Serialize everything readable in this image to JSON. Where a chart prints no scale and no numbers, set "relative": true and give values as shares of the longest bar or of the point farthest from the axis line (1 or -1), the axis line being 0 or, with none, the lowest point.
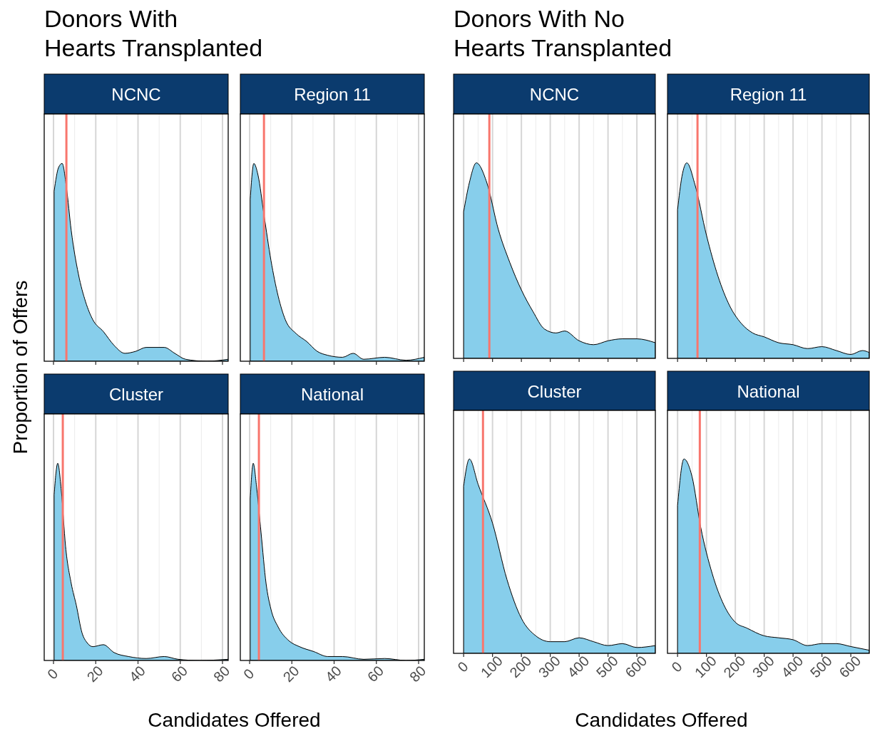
{
  "chart_data": [
    {
      "type": "other",
      "title": "Donors With\nHearts Transplanted"
    },
    {
      "type": "area",
      "title": "NCNC",
      "ylabel": "Proportion of Offers",
      "relative": true,
      "color": "#87ceeb",
      "grid": "x",
      "tick_labels": false,
      "xlim": [
        -4.4,
        82.7
      ],
      "xticks": [
        0,
        20,
        40,
        60,
        80
      ],
      "x": [
        0.3,
        2.4,
        4.1,
        6.1,
        8.4,
        11.8,
        15.2,
        18.6,
        23.6,
        28.7,
        33.8,
        38.9,
        43.9,
        52.4,
        57.4,
        62.5,
        72.6,
        82.7
      ],
      "values": [
        0.86,
        0.98,
        1,
        0.88,
        0.66,
        0.44,
        0.3,
        0.21,
        0.15,
        0.08,
        0.04,
        0.05,
        0.07,
        0.07,
        0.04,
        0.01,
        0,
        0.01
      ],
      "ref_lines": [
        {
          "axis": "x",
          "value": 6.1,
          "color": "#f8766d"
        }
      ]
    },
    {
      "type": "area",
      "title": "Region 11",
      "relative": true,
      "color": "#87ceeb",
      "grid": "x",
      "tick_labels": false,
      "xlim": [
        -4.4,
        82.7
      ],
      "xticks": [
        0,
        20,
        40,
        60,
        80
      ],
      "x": [
        0.3,
        2,
        4,
        6.8,
        10.1,
        13.5,
        16.9,
        22,
        27,
        32,
        37,
        44,
        49,
        54,
        64,
        74,
        82.7
      ],
      "values": [
        0.82,
        1,
        0.94,
        0.74,
        0.51,
        0.33,
        0.21,
        0.14,
        0.1,
        0.05,
        0.03,
        0.02,
        0.04,
        0.01,
        0.02,
        0.005,
        0.02
      ],
      "ref_lines": [
        {
          "axis": "x",
          "value": 6.8,
          "color": "#f8766d"
        }
      ]
    },
    {
      "type": "area",
      "title": "Cluster",
      "xlabel": "Candidates Offered",
      "relative": true,
      "color": "#87ceeb",
      "grid": "x",
      "tick_labels": "x",
      "xlim": [
        -4.4,
        82.7
      ],
      "xticks": [
        0,
        20,
        40,
        60,
        80
      ],
      "x": [
        0.3,
        2,
        3.7,
        5.7,
        8.4,
        10.8,
        13.5,
        15.9,
        18.6,
        23.6,
        28.7,
        35.5,
        43.9,
        52.4,
        59,
        69,
        82.7
      ],
      "values": [
        0.84,
        1,
        0.86,
        0.58,
        0.39,
        0.28,
        0.14,
        0.09,
        0.07,
        0.08,
        0.04,
        0.02,
        0.01,
        0.02,
        0.006,
        0,
        0.006
      ],
      "ref_lines": [
        {
          "axis": "x",
          "value": 4.4,
          "color": "#f8766d"
        }
      ]
    },
    {
      "type": "area",
      "title": "National",
      "relative": true,
      "color": "#87ceeb",
      "grid": "x",
      "tick_labels": "x",
      "xlim": [
        -4.4,
        82.7
      ],
      "xticks": [
        0,
        20,
        40,
        60,
        80
      ],
      "x": [
        0.3,
        1.7,
        3.4,
        5.4,
        7.8,
        10.1,
        13.5,
        18.6,
        23.6,
        30.4,
        37,
        44,
        54,
        64,
        74,
        82.7
      ],
      "values": [
        0.82,
        1,
        0.87,
        0.65,
        0.39,
        0.26,
        0.17,
        0.1,
        0.07,
        0.045,
        0.02,
        0.02,
        0.006,
        0.01,
        0,
        0.006
      ],
      "ref_lines": [
        {
          "axis": "x",
          "value": 4.4,
          "color": "#f8766d"
        }
      ]
    },
    {
      "type": "other",
      "title": "Donors With No\nHearts Transplanted"
    },
    {
      "type": "area",
      "title": "NCNC",
      "relative": true,
      "color": "#87ceeb",
      "grid": "x",
      "tick_labels": false,
      "xlim": [
        -35,
        664
      ],
      "xticks": [
        0,
        100,
        200,
        300,
        400,
        500,
        600
      ],
      "x": [
        0,
        20,
        44,
        80,
        120,
        160,
        200,
        240,
        280,
        320,
        350,
        400,
        450,
        500,
        550,
        600,
        664
      ],
      "values": [
        0.75,
        0.9,
        1,
        0.9,
        0.66,
        0.49,
        0.35,
        0.24,
        0.15,
        0.13,
        0.14,
        0.09,
        0.07,
        0.09,
        0.1,
        0.1,
        0.08
      ],
      "ref_lines": [
        {
          "axis": "x",
          "value": 89,
          "color": "#f8766d"
        }
      ]
    },
    {
      "type": "area",
      "title": "Region 11",
      "relative": true,
      "color": "#87ceeb",
      "grid": "x",
      "tick_labels": false,
      "xlim": [
        -35,
        664
      ],
      "xticks": [
        0,
        100,
        200,
        300,
        400,
        500,
        600
      ],
      "x": [
        0,
        15,
        32,
        60,
        100,
        140,
        180,
        220,
        260,
        300,
        350,
        400,
        450,
        500,
        550,
        600,
        640,
        664
      ],
      "values": [
        0.76,
        0.93,
        1,
        0.89,
        0.63,
        0.42,
        0.27,
        0.18,
        0.13,
        0.11,
        0.08,
        0.07,
        0.05,
        0.06,
        0.04,
        0.02,
        0.04,
        0.03
      ],
      "ref_lines": [
        {
          "axis": "x",
          "value": 69,
          "color": "#f8766d"
        }
      ]
    },
    {
      "type": "area",
      "title": "Cluster",
      "xlabel": "Candidates Offered",
      "relative": true,
      "color": "#87ceeb",
      "grid": "x",
      "tick_labels": "x",
      "xlim": [
        -35,
        664
      ],
      "xticks": [
        0,
        100,
        200,
        300,
        400,
        500,
        600
      ],
      "x": [
        0,
        20,
        50,
        100,
        150,
        200,
        250,
        300,
        350,
        400,
        450,
        500,
        550,
        600,
        664
      ],
      "values": [
        0.86,
        1,
        0.87,
        0.67,
        0.38,
        0.18,
        0.09,
        0.06,
        0.06,
        0.08,
        0.06,
        0.04,
        0.05,
        0.03,
        0.04
      ],
      "ref_lines": [
        {
          "axis": "x",
          "value": 67,
          "color": "#f8766d"
        }
      ]
    },
    {
      "type": "area",
      "title": "National",
      "relative": true,
      "color": "#87ceeb",
      "grid": "x",
      "tick_labels": "x",
      "xlim": [
        -35,
        664
      ],
      "xticks": [
        0,
        100,
        200,
        300,
        400,
        500,
        600
      ],
      "x": [
        0,
        22,
        50,
        80,
        120,
        160,
        200,
        240,
        300,
        350,
        400,
        450,
        500,
        550,
        600,
        664
      ],
      "values": [
        0.76,
        1,
        0.91,
        0.65,
        0.41,
        0.25,
        0.16,
        0.13,
        0.09,
        0.08,
        0.07,
        0.04,
        0.05,
        0.05,
        0.035,
        0.016
      ],
      "ref_lines": [
        {
          "axis": "x",
          "value": 77,
          "color": "#f8766d"
        }
      ]
    }
  ]
}
